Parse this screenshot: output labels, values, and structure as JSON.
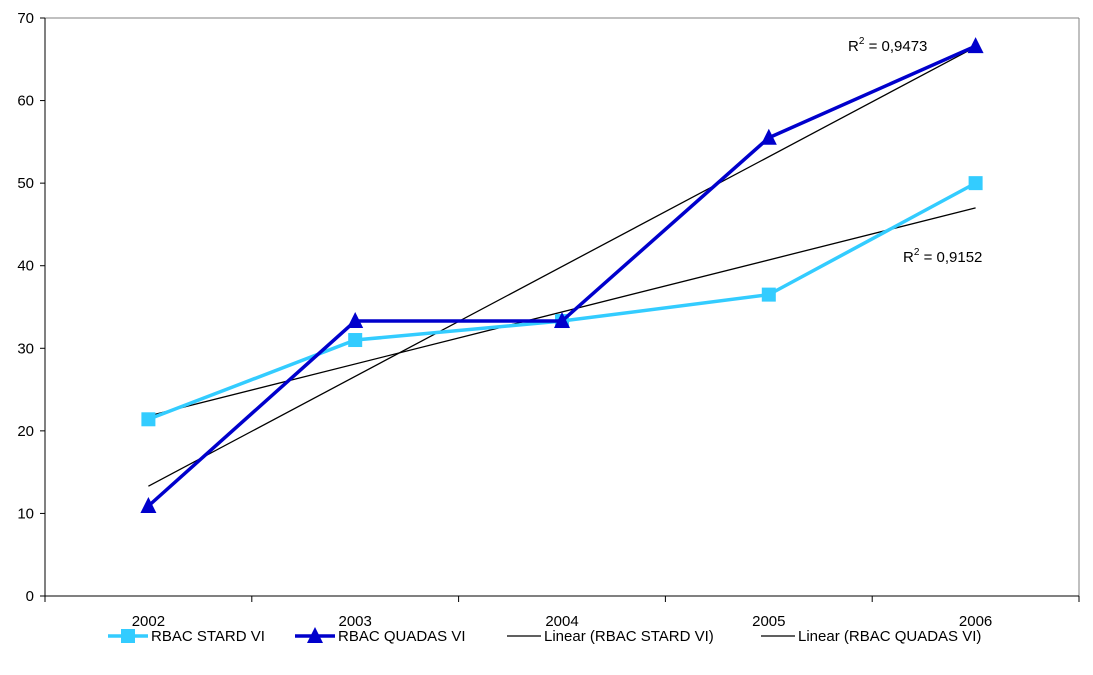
{
  "chart_data": {
    "type": "line",
    "title": "",
    "xlabel": "",
    "ylabel": "",
    "categories": [
      "2002",
      "2003",
      "2004",
      "2005",
      "2006"
    ],
    "ylim": [
      0,
      70
    ],
    "yticks": [
      0,
      10,
      20,
      30,
      40,
      50,
      60,
      70
    ],
    "grid": false,
    "legend_position": "bottom",
    "series": [
      {
        "name": "RBAC STARD VI",
        "values": [
          21.4,
          31,
          33.3,
          36.5,
          50
        ],
        "color": "#33CCFF",
        "marker": "square"
      },
      {
        "name": "RBAC QUADAS VI",
        "values": [
          10.9,
          33.3,
          33.3,
          55.5,
          66.6
        ],
        "color": "#0000CC",
        "marker": "triangle"
      }
    ],
    "trendlines": [
      {
        "name": "Linear (RBAC STARD VI)",
        "of_series": "RBAC STARD VI",
        "start": 21.8,
        "end": 47.0,
        "r2_prefix": "R",
        "r2_sup": "2",
        "r2_text": " = 0,9152",
        "color": "#000000"
      },
      {
        "name": "Linear (RBAC QUADAS VI)",
        "of_series": "RBAC QUADAS VI",
        "start": 13.3,
        "end": 66.5,
        "r2_prefix": "R",
        "r2_sup": "2",
        "r2_text": " = 0,9473",
        "color": "#000000"
      }
    ]
  }
}
